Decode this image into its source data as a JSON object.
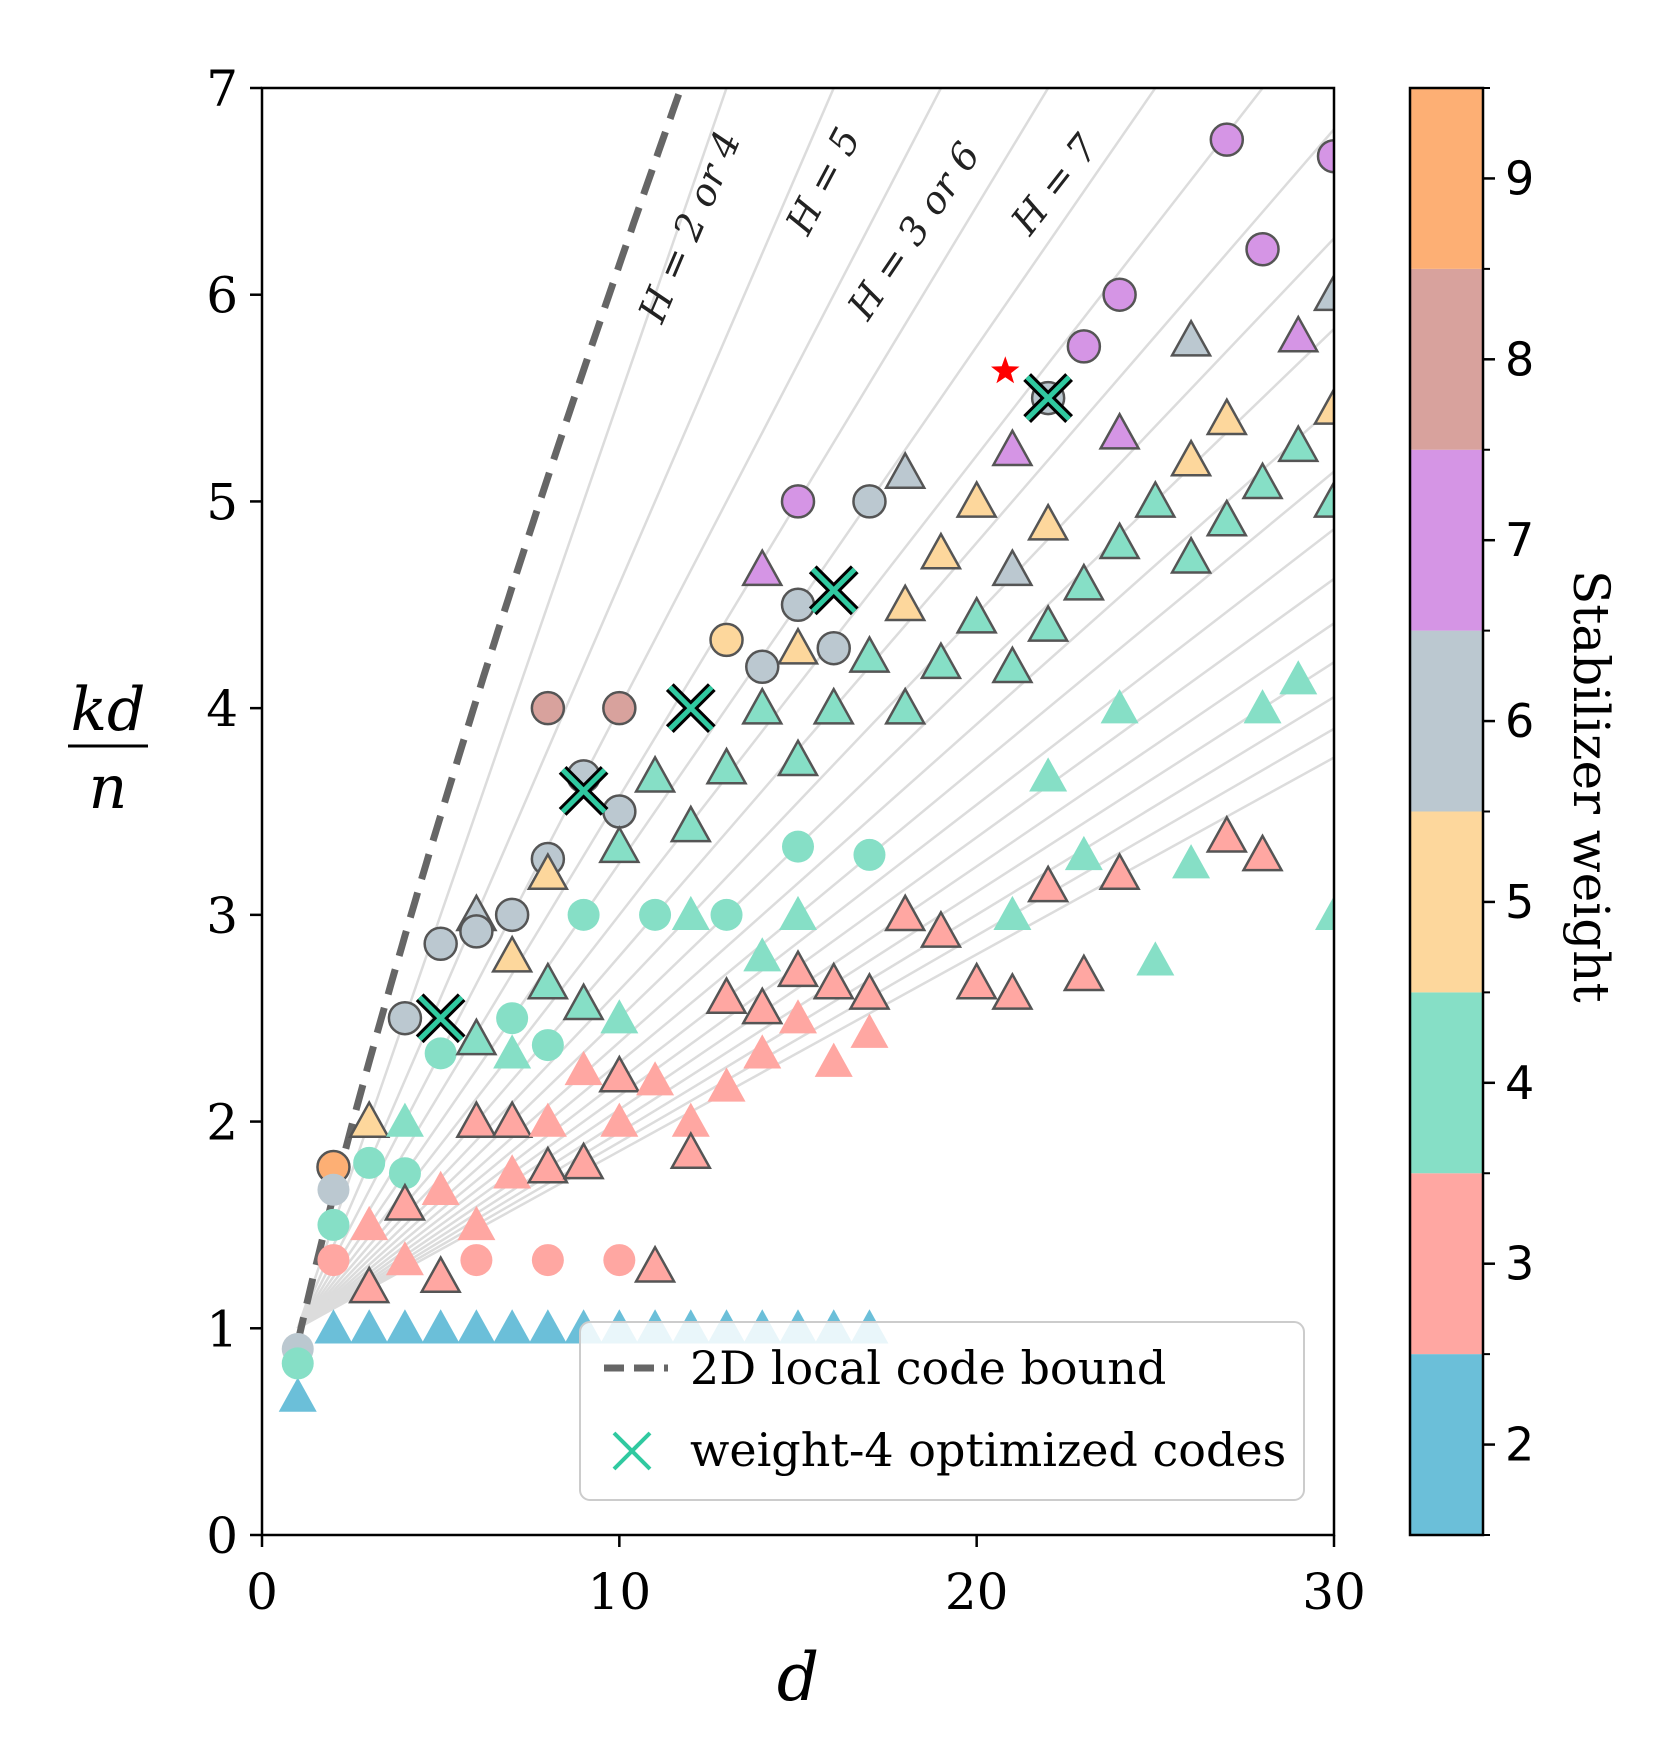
{
  "chart_data": {
    "type": "scatter",
    "xlabel": "d",
    "ylabel": {
      "numerator": "kd",
      "denominator": "n"
    },
    "xlim": [
      0,
      30
    ],
    "ylim": [
      0,
      7
    ],
    "xticks": [
      {
        "value": 0,
        "label": "0"
      },
      {
        "value": 10,
        "label": "10"
      },
      {
        "value": 20,
        "label": "20"
      },
      {
        "value": 30,
        "label": "30"
      }
    ],
    "yticks": [
      {
        "value": 0,
        "label": "0"
      },
      {
        "value": 1,
        "label": "1"
      },
      {
        "value": 2,
        "label": "2"
      },
      {
        "value": 3,
        "label": "3"
      },
      {
        "value": 4,
        "label": "4"
      },
      {
        "value": 5,
        "label": "5"
      },
      {
        "value": 6,
        "label": "6"
      },
      {
        "value": 7,
        "label": "7"
      }
    ],
    "grid": false,
    "colorbar": {
      "label": "Stabilizer weight",
      "ticks": [
        "2",
        "3",
        "4",
        "5",
        "6",
        "7",
        "8",
        "9"
      ],
      "colors": [
        "#6bbfd9",
        "#ffa7a2",
        "#86dfc6",
        "#fdd79c",
        "#bbc8d0",
        "#d595e5",
        "#d8a29d",
        "#fdaf74"
      ]
    },
    "bound_line": {
      "name": "2D local code bound",
      "formula": "kd/n = sqrt(d) style curve",
      "color": "#666666"
    },
    "h_lines_slopes": [
      0.5,
      0.4,
      0.3333,
      0.2857,
      0.25,
      0.2222,
      0.2,
      0.1818,
      0.1667,
      0.1538,
      0.1429,
      0.1333,
      0.125,
      0.1176,
      0.1111,
      0.1053,
      0.1,
      0.0952
    ],
    "h_annotations": [
      "H = 2 or 4",
      "H = 5",
      "H = 3 or 6",
      "H = 7"
    ],
    "legend": [
      {
        "label": "2D local code bound",
        "marker": "dashed-line"
      },
      {
        "label": "weight-4 optimized codes",
        "marker": "x"
      }
    ],
    "points": [
      {
        "d": 1,
        "y": 0.67,
        "w": 2,
        "m": "tri",
        "e": false
      },
      {
        "d": 2,
        "y": 1.0,
        "w": 2,
        "m": "tri",
        "e": false
      },
      {
        "d": 3,
        "y": 1.0,
        "w": 2,
        "m": "tri",
        "e": false
      },
      {
        "d": 4,
        "y": 1.0,
        "w": 2,
        "m": "tri",
        "e": false
      },
      {
        "d": 5,
        "y": 1.0,
        "w": 2,
        "m": "tri",
        "e": false
      },
      {
        "d": 6,
        "y": 1.0,
        "w": 2,
        "m": "tri",
        "e": false
      },
      {
        "d": 7,
        "y": 1.0,
        "w": 2,
        "m": "tri",
        "e": false
      },
      {
        "d": 8,
        "y": 1.0,
        "w": 2,
        "m": "tri",
        "e": false
      },
      {
        "d": 9,
        "y": 1.0,
        "w": 2,
        "m": "tri",
        "e": false
      },
      {
        "d": 10,
        "y": 1.0,
        "w": 2,
        "m": "tri",
        "e": false
      },
      {
        "d": 11,
        "y": 1.0,
        "w": 2,
        "m": "tri",
        "e": false
      },
      {
        "d": 12,
        "y": 1.0,
        "w": 2,
        "m": "tri",
        "e": false
      },
      {
        "d": 13,
        "y": 1.0,
        "w": 2,
        "m": "tri",
        "e": false
      },
      {
        "d": 14,
        "y": 1.0,
        "w": 2,
        "m": "tri",
        "e": false
      },
      {
        "d": 15,
        "y": 1.0,
        "w": 2,
        "m": "tri",
        "e": false
      },
      {
        "d": 16,
        "y": 1.0,
        "w": 2,
        "m": "tri",
        "e": false
      },
      {
        "d": 17,
        "y": 1.0,
        "w": 2,
        "m": "tri",
        "e": false
      },
      {
        "d": 1,
        "y": 0.9,
        "w": 6,
        "m": "circ",
        "e": false
      },
      {
        "d": 1,
        "y": 0.83,
        "w": 4,
        "m": "circ",
        "e": false
      },
      {
        "d": 2,
        "y": 1.78,
        "w": 9,
        "m": "circ",
        "e": true
      },
      {
        "d": 2,
        "y": 1.67,
        "w": 6,
        "m": "circ",
        "e": false
      },
      {
        "d": 2,
        "y": 1.5,
        "w": 4,
        "m": "circ",
        "e": false
      },
      {
        "d": 2,
        "y": 1.33,
        "w": 3,
        "m": "circ",
        "e": false
      },
      {
        "d": 3,
        "y": 2.0,
        "w": 5,
        "m": "tri",
        "e": true
      },
      {
        "d": 3,
        "y": 1.8,
        "w": 4,
        "m": "circ",
        "e": false
      },
      {
        "d": 3,
        "y": 1.5,
        "w": 3,
        "m": "tri",
        "e": false
      },
      {
        "d": 3,
        "y": 1.2,
        "w": 3,
        "m": "tri",
        "e": true
      },
      {
        "d": 4,
        "y": 2.0,
        "w": 4,
        "m": "tri",
        "e": false
      },
      {
        "d": 4,
        "y": 1.75,
        "w": 4,
        "m": "circ",
        "e": false
      },
      {
        "d": 4,
        "y": 1.6,
        "w": 3,
        "m": "tri",
        "e": true
      },
      {
        "d": 4,
        "y": 1.33,
        "w": 3,
        "m": "tri",
        "e": false
      },
      {
        "d": 4,
        "y": 2.5,
        "w": 6,
        "m": "circ",
        "e": true
      },
      {
        "d": 5,
        "y": 2.86,
        "w": 6,
        "m": "circ",
        "e": true
      },
      {
        "d": 5,
        "y": 2.33,
        "w": 4,
        "m": "circ",
        "e": false
      },
      {
        "d": 5,
        "y": 1.67,
        "w": 3,
        "m": "tri",
        "e": false
      },
      {
        "d": 5,
        "y": 1.25,
        "w": 3,
        "m": "tri",
        "e": true
      },
      {
        "d": 6,
        "y": 3.0,
        "w": 6,
        "m": "tri",
        "e": true
      },
      {
        "d": 6,
        "y": 2.92,
        "w": 6,
        "m": "circ",
        "e": true
      },
      {
        "d": 6,
        "y": 2.4,
        "w": 4,
        "m": "tri",
        "e": true
      },
      {
        "d": 6,
        "y": 2.0,
        "w": 3,
        "m": "tri",
        "e": true
      },
      {
        "d": 6,
        "y": 1.5,
        "w": 3,
        "m": "tri",
        "e": false
      },
      {
        "d": 6,
        "y": 1.33,
        "w": 3,
        "m": "circ",
        "e": false
      },
      {
        "d": 7,
        "y": 3.0,
        "w": 6,
        "m": "circ",
        "e": true
      },
      {
        "d": 7,
        "y": 2.8,
        "w": 5,
        "m": "tri",
        "e": true
      },
      {
        "d": 7,
        "y": 2.5,
        "w": 4,
        "m": "circ",
        "e": false
      },
      {
        "d": 7,
        "y": 2.33,
        "w": 4,
        "m": "tri",
        "e": false
      },
      {
        "d": 7,
        "y": 2.0,
        "w": 3,
        "m": "tri",
        "e": true
      },
      {
        "d": 7,
        "y": 1.75,
        "w": 3,
        "m": "tri",
        "e": false
      },
      {
        "d": 8,
        "y": 4.0,
        "w": 8,
        "m": "circ",
        "e": true
      },
      {
        "d": 8,
        "y": 3.27,
        "w": 6,
        "m": "circ",
        "e": true
      },
      {
        "d": 8,
        "y": 3.2,
        "w": 5,
        "m": "tri",
        "e": true
      },
      {
        "d": 8,
        "y": 2.67,
        "w": 4,
        "m": "tri",
        "e": true
      },
      {
        "d": 8,
        "y": 2.37,
        "w": 4,
        "m": "circ",
        "e": false
      },
      {
        "d": 8,
        "y": 2.0,
        "w": 3,
        "m": "tri",
        "e": false
      },
      {
        "d": 8,
        "y": 1.78,
        "w": 3,
        "m": "tri",
        "e": true
      },
      {
        "d": 8,
        "y": 1.33,
        "w": 3,
        "m": "circ",
        "e": false
      },
      {
        "d": 9,
        "y": 3.67,
        "w": 6,
        "m": "circ",
        "e": true
      },
      {
        "d": 9,
        "y": 3.0,
        "w": 4,
        "m": "circ",
        "e": false
      },
      {
        "d": 9,
        "y": 2.57,
        "w": 4,
        "m": "tri",
        "e": true
      },
      {
        "d": 9,
        "y": 2.25,
        "w": 3,
        "m": "tri",
        "e": false
      },
      {
        "d": 9,
        "y": 1.8,
        "w": 3,
        "m": "tri",
        "e": true
      },
      {
        "d": 10,
        "y": 4.0,
        "w": 8,
        "m": "circ",
        "e": true
      },
      {
        "d": 10,
        "y": 3.5,
        "w": 6,
        "m": "circ",
        "e": true
      },
      {
        "d": 10,
        "y": 3.33,
        "w": 4,
        "m": "tri",
        "e": true
      },
      {
        "d": 10,
        "y": 2.5,
        "w": 4,
        "m": "tri",
        "e": false
      },
      {
        "d": 10,
        "y": 2.22,
        "w": 3,
        "m": "tri",
        "e": true
      },
      {
        "d": 10,
        "y": 2.0,
        "w": 3,
        "m": "tri",
        "e": false
      },
      {
        "d": 10,
        "y": 1.33,
        "w": 3,
        "m": "circ",
        "e": false
      },
      {
        "d": 11,
        "y": 3.67,
        "w": 4,
        "m": "tri",
        "e": true
      },
      {
        "d": 11,
        "y": 3.0,
        "w": 4,
        "m": "circ",
        "e": false
      },
      {
        "d": 11,
        "y": 2.2,
        "w": 3,
        "m": "tri",
        "e": false
      },
      {
        "d": 11,
        "y": 1.3,
        "w": 3,
        "m": "tri",
        "e": true
      },
      {
        "d": 12,
        "y": 3.43,
        "w": 4,
        "m": "tri",
        "e": true
      },
      {
        "d": 12,
        "y": 3.0,
        "w": 4,
        "m": "tri",
        "e": false
      },
      {
        "d": 12,
        "y": 2.0,
        "w": 3,
        "m": "tri",
        "e": false
      },
      {
        "d": 12,
        "y": 1.85,
        "w": 3,
        "m": "tri",
        "e": true
      },
      {
        "d": 13,
        "y": 4.33,
        "w": 5,
        "m": "circ",
        "e": true
      },
      {
        "d": 13,
        "y": 3.71,
        "w": 4,
        "m": "tri",
        "e": true
      },
      {
        "d": 13,
        "y": 3.0,
        "w": 4,
        "m": "circ",
        "e": false
      },
      {
        "d": 13,
        "y": 2.6,
        "w": 3,
        "m": "tri",
        "e": true
      },
      {
        "d": 13,
        "y": 2.17,
        "w": 3,
        "m": "tri",
        "e": false
      },
      {
        "d": 14,
        "y": 4.67,
        "w": 7,
        "m": "tri",
        "e": true
      },
      {
        "d": 14,
        "y": 4.2,
        "w": 6,
        "m": "circ",
        "e": true
      },
      {
        "d": 14,
        "y": 4.0,
        "w": 4,
        "m": "tri",
        "e": true
      },
      {
        "d": 14,
        "y": 2.8,
        "w": 4,
        "m": "tri",
        "e": false
      },
      {
        "d": 14,
        "y": 2.55,
        "w": 3,
        "m": "tri",
        "e": true
      },
      {
        "d": 14,
        "y": 2.33,
        "w": 3,
        "m": "tri",
        "e": false
      },
      {
        "d": 15,
        "y": 5.0,
        "w": 7,
        "m": "circ",
        "e": true
      },
      {
        "d": 15,
        "y": 4.5,
        "w": 6,
        "m": "circ",
        "e": true
      },
      {
        "d": 15,
        "y": 4.29,
        "w": 5,
        "m": "tri",
        "e": true
      },
      {
        "d": 15,
        "y": 3.75,
        "w": 4,
        "m": "tri",
        "e": true
      },
      {
        "d": 15,
        "y": 3.33,
        "w": 4,
        "m": "circ",
        "e": false
      },
      {
        "d": 15,
        "y": 3.0,
        "w": 4,
        "m": "tri",
        "e": false
      },
      {
        "d": 15,
        "y": 2.73,
        "w": 3,
        "m": "tri",
        "e": true
      },
      {
        "d": 15,
        "y": 2.5,
        "w": 3,
        "m": "tri",
        "e": false
      },
      {
        "d": 16,
        "y": 4.29,
        "w": 6,
        "m": "circ",
        "e": true
      },
      {
        "d": 16,
        "y": 4.0,
        "w": 4,
        "m": "tri",
        "e": true
      },
      {
        "d": 16,
        "y": 2.67,
        "w": 3,
        "m": "tri",
        "e": true
      },
      {
        "d": 16,
        "y": 2.29,
        "w": 3,
        "m": "tri",
        "e": false
      },
      {
        "d": 17,
        "y": 5.0,
        "w": 6,
        "m": "circ",
        "e": true
      },
      {
        "d": 17,
        "y": 4.25,
        "w": 4,
        "m": "tri",
        "e": true
      },
      {
        "d": 17,
        "y": 3.29,
        "w": 4,
        "m": "circ",
        "e": false
      },
      {
        "d": 17,
        "y": 2.62,
        "w": 3,
        "m": "tri",
        "e": true
      },
      {
        "d": 17,
        "y": 2.43,
        "w": 3,
        "m": "tri",
        "e": false
      },
      {
        "d": 18,
        "y": 5.14,
        "w": 6,
        "m": "tri",
        "e": true
      },
      {
        "d": 18,
        "y": 4.5,
        "w": 5,
        "m": "tri",
        "e": true
      },
      {
        "d": 18,
        "y": 4.0,
        "w": 4,
        "m": "tri",
        "e": true
      },
      {
        "d": 18,
        "y": 3.0,
        "w": 3,
        "m": "tri",
        "e": true
      },
      {
        "d": 19,
        "y": 4.75,
        "w": 5,
        "m": "tri",
        "e": true
      },
      {
        "d": 19,
        "y": 4.22,
        "w": 4,
        "m": "tri",
        "e": true
      },
      {
        "d": 19,
        "y": 2.92,
        "w": 3,
        "m": "tri",
        "e": true
      },
      {
        "d": 20,
        "y": 5.0,
        "w": 5,
        "m": "tri",
        "e": true
      },
      {
        "d": 20,
        "y": 4.44,
        "w": 4,
        "m": "tri",
        "e": true
      },
      {
        "d": 20,
        "y": 2.67,
        "w": 3,
        "m": "tri",
        "e": true
      },
      {
        "d": 21,
        "y": 5.25,
        "w": 7,
        "m": "tri",
        "e": true
      },
      {
        "d": 21,
        "y": 4.67,
        "w": 6,
        "m": "tri",
        "e": true
      },
      {
        "d": 21,
        "y": 4.2,
        "w": 4,
        "m": "tri",
        "e": true
      },
      {
        "d": 21,
        "y": 3.0,
        "w": 4,
        "m": "tri",
        "e": false
      },
      {
        "d": 21,
        "y": 2.62,
        "w": 3,
        "m": "tri",
        "e": true
      },
      {
        "d": 22,
        "y": 5.5,
        "w": 6,
        "m": "circ",
        "e": true
      },
      {
        "d": 22,
        "y": 4.89,
        "w": 5,
        "m": "tri",
        "e": true
      },
      {
        "d": 22,
        "y": 4.4,
        "w": 4,
        "m": "tri",
        "e": true
      },
      {
        "d": 22,
        "y": 3.67,
        "w": 4,
        "m": "tri",
        "e": false
      },
      {
        "d": 22,
        "y": 3.14,
        "w": 3,
        "m": "tri",
        "e": true
      },
      {
        "d": 23,
        "y": 5.75,
        "w": 7,
        "m": "circ",
        "e": true
      },
      {
        "d": 23,
        "y": 4.6,
        "w": 4,
        "m": "tri",
        "e": true
      },
      {
        "d": 23,
        "y": 3.29,
        "w": 4,
        "m": "tri",
        "e": false
      },
      {
        "d": 23,
        "y": 2.71,
        "w": 3,
        "m": "tri",
        "e": true
      },
      {
        "d": 24,
        "y": 6.0,
        "w": 7,
        "m": "circ",
        "e": true
      },
      {
        "d": 24,
        "y": 5.33,
        "w": 7,
        "m": "tri",
        "e": true
      },
      {
        "d": 24,
        "y": 4.8,
        "w": 4,
        "m": "tri",
        "e": true
      },
      {
        "d": 24,
        "y": 4.0,
        "w": 4,
        "m": "tri",
        "e": false
      },
      {
        "d": 24,
        "y": 3.2,
        "w": 3,
        "m": "tri",
        "e": true
      },
      {
        "d": 25,
        "y": 5.0,
        "w": 4,
        "m": "tri",
        "e": true
      },
      {
        "d": 25,
        "y": 2.78,
        "w": 4,
        "m": "tri",
        "e": false
      },
      {
        "d": 26,
        "y": 5.78,
        "w": 6,
        "m": "tri",
        "e": true
      },
      {
        "d": 26,
        "y": 5.2,
        "w": 5,
        "m": "tri",
        "e": true
      },
      {
        "d": 26,
        "y": 4.73,
        "w": 4,
        "m": "tri",
        "e": true
      },
      {
        "d": 26,
        "y": 3.25,
        "w": 4,
        "m": "tri",
        "e": false
      },
      {
        "d": 27,
        "y": 6.75,
        "w": 7,
        "m": "circ",
        "e": true
      },
      {
        "d": 27,
        "y": 5.4,
        "w": 5,
        "m": "tri",
        "e": true
      },
      {
        "d": 27,
        "y": 4.91,
        "w": 4,
        "m": "tri",
        "e": true
      },
      {
        "d": 27,
        "y": 3.38,
        "w": 3,
        "m": "tri",
        "e": true
      },
      {
        "d": 28,
        "y": 6.22,
        "w": 7,
        "m": "circ",
        "e": true
      },
      {
        "d": 28,
        "y": 5.09,
        "w": 4,
        "m": "tri",
        "e": true
      },
      {
        "d": 28,
        "y": 4.0,
        "w": 4,
        "m": "tri",
        "e": false
      },
      {
        "d": 28,
        "y": 3.29,
        "w": 3,
        "m": "tri",
        "e": true
      },
      {
        "d": 29,
        "y": 5.8,
        "w": 7,
        "m": "tri",
        "e": true
      },
      {
        "d": 29,
        "y": 5.27,
        "w": 4,
        "m": "tri",
        "e": true
      },
      {
        "d": 29,
        "y": 4.14,
        "w": 4,
        "m": "tri",
        "e": false
      },
      {
        "d": 30,
        "y": 6.67,
        "w": 7,
        "m": "circ",
        "e": true
      },
      {
        "d": 30,
        "y": 6.0,
        "w": 6,
        "m": "tri",
        "e": true
      },
      {
        "d": 30,
        "y": 5.45,
        "w": 5,
        "m": "tri",
        "e": true
      },
      {
        "d": 30,
        "y": 5.0,
        "w": 4,
        "m": "tri",
        "e": true
      },
      {
        "d": 30,
        "y": 3.0,
        "w": 4,
        "m": "tri",
        "e": false
      }
    ],
    "optimized": [
      {
        "d": 5,
        "y": 2.5
      },
      {
        "d": 9,
        "y": 3.6
      },
      {
        "d": 12,
        "y": 4.0
      },
      {
        "d": 16,
        "y": 4.57
      },
      {
        "d": 22,
        "y": 5.5
      }
    ],
    "star": {
      "d": 20.8,
      "y": 5.63,
      "color": "#ff0000"
    }
  }
}
